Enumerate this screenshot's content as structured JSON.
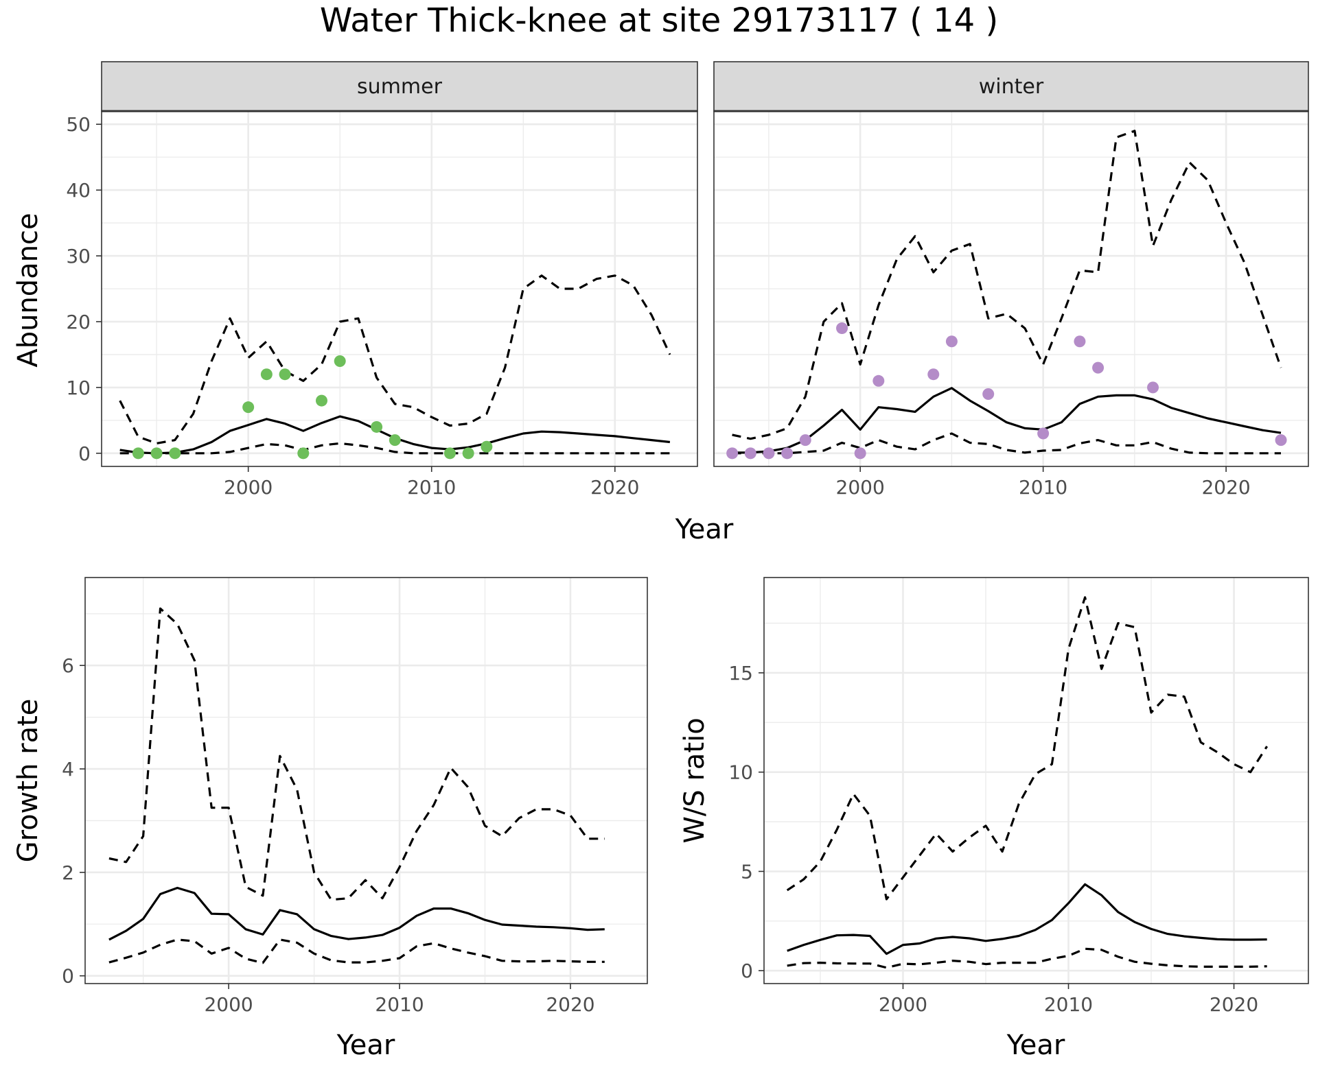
{
  "page": {
    "title": "Water Thick-knee at site 29173117 ( 14 )"
  },
  "colors": {
    "summer_points": "#6DBE5A",
    "winter_points": "#B48CC8",
    "line": "#000000",
    "strip_fill": "#D9D9D9",
    "grid": "#EBEBEB"
  },
  "chart_data": [
    {
      "id": "summer",
      "type": "line",
      "strip": "summer",
      "xlabel": "Year",
      "ylabel": "Abundance",
      "xlim": [
        1992,
        2024.5
      ],
      "ylim": [
        -2,
        52
      ],
      "xticks": [
        2000,
        2010,
        2020
      ],
      "yticks": [
        0,
        10,
        20,
        30,
        40,
        50
      ],
      "grid": true,
      "series": [
        {
          "role": "median",
          "style": "solid",
          "x": [
            1993,
            1994,
            1995,
            1996,
            1997,
            1998,
            1999,
            2000,
            2001,
            2002,
            2003,
            2004,
            2005,
            2006,
            2007,
            2008,
            2009,
            2010,
            2011,
            2012,
            2013,
            2014,
            2015,
            2016,
            2017,
            2018,
            2019,
            2020,
            2021,
            2022,
            2023
          ],
          "y": [
            0.5,
            0.1,
            0,
            0.1,
            0.6,
            1.7,
            3.4,
            4.3,
            5.2,
            4.5,
            3.4,
            4.6,
            5.6,
            4.9,
            3.6,
            2.3,
            1.4,
            0.8,
            0.6,
            0.9,
            1.5,
            2.3,
            3,
            3.3,
            3.2,
            3,
            2.8,
            2.6,
            2.3,
            2,
            1.7
          ]
        },
        {
          "role": "upper",
          "style": "dashed",
          "x": [
            1993,
            1994,
            1995,
            1996,
            1997,
            1998,
            1999,
            2000,
            2001,
            2002,
            2003,
            2004,
            2005,
            2006,
            2007,
            2008,
            2009,
            2010,
            2011,
            2012,
            2013,
            2014,
            2015,
            2016,
            2017,
            2018,
            2019,
            2020,
            2021,
            2022,
            2023
          ],
          "y": [
            8,
            2.5,
            1.5,
            2,
            6,
            14,
            20.5,
            14.5,
            17,
            12.5,
            11,
            13.5,
            20,
            20.5,
            11.5,
            7.5,
            7,
            5.5,
            4.2,
            4.5,
            6,
            13,
            25,
            27,
            25,
            25,
            26.5,
            27,
            25.5,
            21,
            15
          ]
        },
        {
          "role": "lower",
          "style": "dashed",
          "x": [
            1993,
            1994,
            1995,
            1996,
            1997,
            1998,
            1999,
            2000,
            2001,
            2002,
            2003,
            2004,
            2005,
            2006,
            2007,
            2008,
            2009,
            2010,
            2011,
            2012,
            2013,
            2014,
            2015,
            2016,
            2017,
            2018,
            2019,
            2020,
            2021,
            2022,
            2023
          ],
          "y": [
            0,
            0,
            0,
            0,
            0,
            0,
            0.2,
            0.8,
            1.4,
            1.2,
            0.5,
            1.2,
            1.5,
            1.2,
            0.8,
            0.2,
            0,
            0,
            0,
            0,
            0,
            0,
            0,
            0,
            0,
            0,
            0,
            0,
            0,
            0,
            0
          ]
        }
      ],
      "points": {
        "x": [
          1994,
          1995,
          1996,
          2000,
          2001,
          2002,
          2003,
          2004,
          2005,
          2007,
          2008,
          2011,
          2012,
          2013
        ],
        "y": [
          0,
          0,
          0,
          7,
          12,
          12,
          0,
          8,
          14,
          4,
          2,
          0,
          0,
          1
        ]
      }
    },
    {
      "id": "winter",
      "type": "line",
      "strip": "winter",
      "xlabel": "Year",
      "ylabel": "Abundance",
      "xlim": [
        1992,
        2024.5
      ],
      "ylim": [
        -2,
        52
      ],
      "xticks": [
        2000,
        2010,
        2020
      ],
      "yticks": [
        0,
        10,
        20,
        30,
        40,
        50
      ],
      "grid": true,
      "series": [
        {
          "role": "median",
          "style": "solid",
          "x": [
            1993,
            1994,
            1995,
            1996,
            1997,
            1998,
            1999,
            2000,
            2001,
            2002,
            2003,
            2004,
            2005,
            2006,
            2007,
            2008,
            2009,
            2010,
            2011,
            2012,
            2013,
            2014,
            2015,
            2016,
            2017,
            2018,
            2019,
            2020,
            2021,
            2022,
            2023
          ],
          "y": [
            0.1,
            0.1,
            0.3,
            0.8,
            2,
            4.2,
            6.6,
            3.6,
            7,
            6.7,
            6.3,
            8.6,
            9.9,
            8,
            6.4,
            4.7,
            3.8,
            3.6,
            4.7,
            7.5,
            8.6,
            8.8,
            8.8,
            8.2,
            6.9,
            6.1,
            5.3,
            4.7,
            4.1,
            3.5,
            3.1
          ]
        },
        {
          "role": "upper",
          "style": "dashed",
          "x": [
            1993,
            1994,
            1995,
            1996,
            1997,
            1998,
            1999,
            2000,
            2001,
            2002,
            2003,
            2004,
            2005,
            2006,
            2007,
            2008,
            2009,
            2010,
            2011,
            2012,
            2013,
            2014,
            2015,
            2016,
            2017,
            2018,
            2019,
            2020,
            2021,
            2022,
            2023
          ],
          "y": [
            2.8,
            2.2,
            2.8,
            3.8,
            8.6,
            20,
            22.8,
            13.5,
            22.5,
            29.5,
            33,
            27.5,
            30.8,
            31.8,
            20.5,
            21.2,
            19,
            13.5,
            20.5,
            27.8,
            27.5,
            48,
            49,
            31.5,
            38.5,
            44.2,
            41.5,
            35,
            29,
            21,
            13
          ]
        },
        {
          "role": "lower",
          "style": "dashed",
          "x": [
            1993,
            1994,
            1995,
            1996,
            1997,
            1998,
            1999,
            2000,
            2001,
            2002,
            2003,
            2004,
            2005,
            2006,
            2007,
            2008,
            2009,
            2010,
            2011,
            2012,
            2013,
            2014,
            2015,
            2016,
            2017,
            2018,
            2019,
            2020,
            2021,
            2022,
            2023
          ],
          "y": [
            0,
            0,
            0,
            0,
            0.2,
            0.4,
            1.6,
            0.8,
            2,
            1,
            0.6,
            2,
            3,
            1.6,
            1.4,
            0.5,
            0.1,
            0.4,
            0.5,
            1.5,
            2,
            1.2,
            1.2,
            1.7,
            0.7,
            0.1,
            0,
            0,
            0,
            0,
            0
          ]
        }
      ],
      "points": {
        "x": [
          1993,
          1994,
          1995,
          1996,
          1997,
          1999,
          2000,
          2001,
          2004,
          2005,
          2007,
          2010,
          2012,
          2013,
          2016,
          2023
        ],
        "y": [
          0,
          0,
          0,
          0,
          2,
          19,
          0,
          11,
          12,
          17,
          9,
          3,
          17,
          13,
          10,
          2
        ]
      }
    },
    {
      "id": "growth",
      "type": "line",
      "xlabel": "Year",
      "ylabel": "Growth rate",
      "xlim": [
        1991.6,
        2024.5
      ],
      "ylim": [
        -0.15,
        7.7
      ],
      "xticks": [
        2000,
        2010,
        2020
      ],
      "yticks": [
        0,
        2,
        4,
        6
      ],
      "grid": true,
      "series": [
        {
          "role": "median",
          "style": "solid",
          "x": [
            1993,
            1994,
            1995,
            1996,
            1997,
            1998,
            1999,
            2000,
            2001,
            2002,
            2003,
            2004,
            2005,
            2006,
            2007,
            2008,
            2009,
            2010,
            2011,
            2012,
            2013,
            2014,
            2015,
            2016,
            2017,
            2018,
            2019,
            2020,
            2021,
            2022
          ],
          "y": [
            0.7,
            0.87,
            1.1,
            1.58,
            1.7,
            1.6,
            1.2,
            1.19,
            0.9,
            0.8,
            1.27,
            1.19,
            0.9,
            0.77,
            0.71,
            0.74,
            0.79,
            0.93,
            1.16,
            1.3,
            1.3,
            1.21,
            1.08,
            0.99,
            0.97,
            0.95,
            0.94,
            0.92,
            0.89,
            0.9
          ]
        },
        {
          "role": "upper",
          "style": "dashed",
          "x": [
            1993,
            1994,
            1995,
            1996,
            1997,
            1998,
            1999,
            2000,
            2001,
            2002,
            2003,
            2004,
            2005,
            2006,
            2007,
            2008,
            2009,
            2010,
            2011,
            2012,
            2013,
            2014,
            2015,
            2016,
            2017,
            2018,
            2019,
            2020,
            2021,
            2022
          ],
          "y": [
            2.27,
            2.2,
            2.7,
            7.1,
            6.8,
            6.1,
            3.25,
            3.25,
            1.72,
            1.55,
            4.25,
            3.6,
            2,
            1.47,
            1.5,
            1.85,
            1.5,
            2.1,
            2.8,
            3.3,
            4.02,
            3.65,
            2.9,
            2.7,
            3.05,
            3.22,
            3.22,
            3.1,
            2.65,
            2.65
          ]
        },
        {
          "role": "lower",
          "style": "dashed",
          "x": [
            1993,
            1994,
            1995,
            1996,
            1997,
            1998,
            1999,
            2000,
            2001,
            2002,
            2003,
            2004,
            2005,
            2006,
            2007,
            2008,
            2009,
            2010,
            2011,
            2012,
            2013,
            2014,
            2015,
            2016,
            2017,
            2018,
            2019,
            2020,
            2021,
            2022
          ],
          "y": [
            0.26,
            0.35,
            0.45,
            0.6,
            0.7,
            0.67,
            0.43,
            0.54,
            0.33,
            0.25,
            0.7,
            0.64,
            0.43,
            0.3,
            0.26,
            0.26,
            0.29,
            0.34,
            0.57,
            0.63,
            0.53,
            0.45,
            0.38,
            0.29,
            0.28,
            0.28,
            0.29,
            0.28,
            0.27,
            0.27
          ]
        }
      ]
    },
    {
      "id": "ws",
      "type": "line",
      "xlabel": "Year",
      "ylabel": "W/S ratio",
      "xlim": [
        1991.6,
        2024.5
      ],
      "ylim": [
        -0.65,
        19.8
      ],
      "xticks": [
        2000,
        2010,
        2020
      ],
      "yticks": [
        0,
        5,
        10,
        15
      ],
      "grid": true,
      "series": [
        {
          "role": "median",
          "style": "solid",
          "x": [
            1993,
            1994,
            1995,
            1996,
            1997,
            1998,
            1999,
            2000,
            2001,
            2002,
            2003,
            2004,
            2005,
            2006,
            2007,
            2008,
            2009,
            2010,
            2011,
            2012,
            2013,
            2014,
            2015,
            2016,
            2017,
            2018,
            2019,
            2020,
            2021,
            2022
          ],
          "y": [
            1,
            1.3,
            1.55,
            1.78,
            1.8,
            1.75,
            0.85,
            1.3,
            1.37,
            1.62,
            1.7,
            1.63,
            1.5,
            1.6,
            1.75,
            2.05,
            2.55,
            3.4,
            4.35,
            3.8,
            2.95,
            2.45,
            2.1,
            1.85,
            1.73,
            1.65,
            1.58,
            1.56,
            1.56,
            1.57
          ]
        },
        {
          "role": "upper",
          "style": "dashed",
          "x": [
            1993,
            1994,
            1995,
            1996,
            1997,
            1998,
            1999,
            2000,
            2001,
            2002,
            2003,
            2004,
            2005,
            2006,
            2007,
            2008,
            2009,
            2010,
            2011,
            2012,
            2013,
            2014,
            2015,
            2016,
            2017,
            2018,
            2019,
            2020,
            2021,
            2022
          ],
          "y": [
            4.05,
            4.6,
            5.5,
            7.1,
            8.9,
            7.8,
            3.6,
            4.7,
            5.8,
            6.9,
            6,
            6.7,
            7.3,
            6,
            8.4,
            9.9,
            10.4,
            16.2,
            18.8,
            15.2,
            17.5,
            17.3,
            13,
            13.9,
            13.8,
            11.5,
            11,
            10.4,
            10,
            11.3
          ]
        },
        {
          "role": "lower",
          "style": "dashed",
          "x": [
            1993,
            1994,
            1995,
            1996,
            1997,
            1998,
            1999,
            2000,
            2001,
            2002,
            2003,
            2004,
            2005,
            2006,
            2007,
            2008,
            2009,
            2010,
            2011,
            2012,
            2013,
            2014,
            2015,
            2016,
            2017,
            2018,
            2019,
            2020,
            2021,
            2022
          ],
          "y": [
            0.25,
            0.38,
            0.4,
            0.37,
            0.36,
            0.36,
            0.15,
            0.35,
            0.32,
            0.4,
            0.5,
            0.45,
            0.33,
            0.4,
            0.4,
            0.4,
            0.6,
            0.75,
            1.1,
            1.05,
            0.7,
            0.45,
            0.35,
            0.27,
            0.22,
            0.2,
            0.2,
            0.2,
            0.2,
            0.22
          ]
        }
      ]
    }
  ]
}
